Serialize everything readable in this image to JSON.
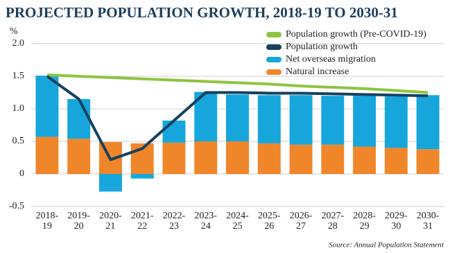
{
  "chart_data": {
    "type": "bar",
    "title": "PROJECTED POPULATION GROWTH, 2018-19 TO 2030-31",
    "y_label": "%",
    "source": "Source: Annual Population Statement",
    "categories": [
      "2018-19",
      "2019-20",
      "2020-21",
      "2021-22",
      "2022-23",
      "2023-24",
      "2024-25",
      "2025-26",
      "2026-27",
      "2027-28",
      "2028-29",
      "2029-30",
      "2030-31"
    ],
    "series": [
      {
        "name": "Population growth (Pre-COVID-19)",
        "type": "line",
        "color": "#8dc33f",
        "values": [
          1.52,
          1.5,
          1.48,
          1.46,
          1.44,
          1.42,
          1.4,
          1.38,
          1.35,
          1.33,
          1.31,
          1.28,
          1.25
        ]
      },
      {
        "name": "Population growth",
        "type": "line",
        "color": "#15405e",
        "values": [
          1.5,
          1.15,
          0.22,
          0.39,
          0.82,
          1.25,
          1.25,
          1.24,
          1.24,
          1.23,
          1.22,
          1.21,
          1.2
        ]
      },
      {
        "name": "Net overseas migration",
        "type": "bar",
        "color": "#16a6dc",
        "values": [
          0.94,
          0.61,
          -0.27,
          -0.07,
          0.34,
          0.76,
          0.72,
          0.74,
          0.76,
          0.75,
          0.78,
          0.79,
          0.83
        ]
      },
      {
        "name": "Natural increase",
        "type": "bar",
        "color": "#f0862a",
        "values": [
          0.57,
          0.54,
          0.49,
          0.47,
          0.48,
          0.5,
          0.5,
          0.47,
          0.45,
          0.45,
          0.42,
          0.4,
          0.38
        ]
      }
    ],
    "ylim": [
      -0.5,
      2.0
    ],
    "yticks": [
      {
        "value": -0.5,
        "label": "-0.5"
      },
      0,
      {
        "value": 0.5,
        "label": "0.5"
      },
      {
        "value": 1.0,
        "label": "1.0"
      },
      {
        "value": 1.5,
        "label": "1.5"
      },
      {
        "value": 2.0,
        "label": "2.0"
      }
    ],
    "grid": true
  }
}
